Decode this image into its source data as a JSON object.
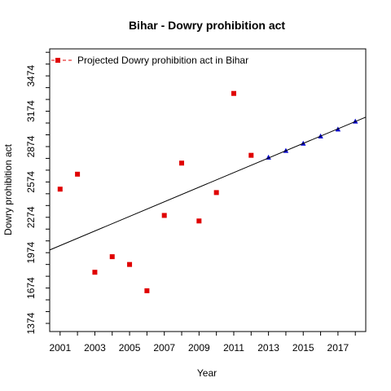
{
  "chart_data": {
    "type": "scatter",
    "title": "Bihar  -  Dowry prohibition act",
    "xlabel": "Year",
    "ylabel": "Dowry prohibition act",
    "legend": {
      "label": "Projected  Dowry prohibition act  in  Bihar",
      "placement": "top-left"
    },
    "x_ticks": [
      "2001",
      "2003",
      "2005",
      "2007",
      "2009",
      "2011",
      "2013",
      "2015",
      "2017"
    ],
    "y_ticks": [
      "1374",
      "1674",
      "1974",
      "2274",
      "2574",
      "2874",
      "3174",
      "3474"
    ],
    "xlim": [
      2000.4,
      2018.6
    ],
    "ylim": [
      1305,
      3703
    ],
    "grid": false,
    "series": [
      {
        "name": "Projected  Dowry prohibition act  in  Bihar",
        "marker": "square",
        "color": "#e00000",
        "x": [
          2001,
          2002,
          2003,
          2004,
          2005,
          2006,
          2007,
          2008,
          2009,
          2010,
          2011,
          2012
        ],
        "y": [
          2513,
          2640,
          1808,
          1940,
          1874,
          1651,
          2290,
          2734,
          2243,
          2484,
          3325,
          2800
        ]
      },
      {
        "marker": "triangle",
        "color": "#0000cc",
        "x": [
          2013,
          2014,
          2015,
          2016,
          2017,
          2018
        ],
        "y": [
          2781,
          2838,
          2900,
          2961,
          3020,
          3087
        ]
      },
      {
        "marker": "line",
        "color": "#000000",
        "x": [
          2000.4,
          2018.6
        ],
        "y": [
          1997,
          3124
        ]
      }
    ]
  }
}
